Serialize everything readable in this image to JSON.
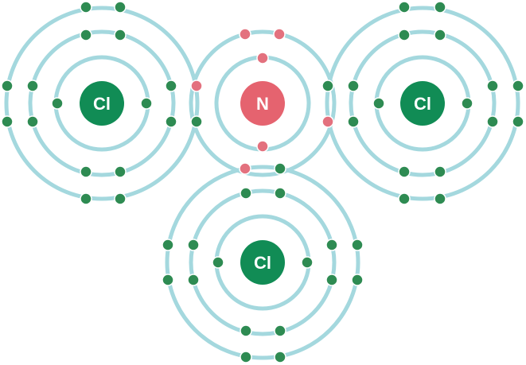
{
  "colors": {
    "background": "#ffffff",
    "shell_ring": "#a4d8de",
    "cl_nucleus": "#118c55",
    "cl_electron": "#2e8b52",
    "n_nucleus": "#e5636f",
    "n_electron": "#e3717e",
    "nucleus_label": "#ffffff"
  },
  "molecule": {
    "atoms": [
      {
        "id": "cl-left",
        "symbol": "Cl",
        "shell_electrons": [
          2,
          8,
          7
        ]
      },
      {
        "id": "n-center",
        "symbol": "N",
        "shell_electrons": [
          2,
          5
        ]
      },
      {
        "id": "cl-right",
        "symbol": "Cl",
        "shell_electrons": [
          2,
          8,
          7
        ]
      },
      {
        "id": "cl-bottom",
        "symbol": "Cl",
        "shell_electrons": [
          2,
          8,
          7
        ]
      }
    ],
    "bonds": [
      {
        "from": "n-center",
        "to": "cl-left",
        "type": "single covalent",
        "shared_pair": [
          "N",
          "Cl"
        ]
      },
      {
        "from": "n-center",
        "to": "cl-right",
        "type": "single covalent",
        "shared_pair": [
          "N",
          "Cl"
        ]
      },
      {
        "from": "n-center",
        "to": "cl-bottom",
        "type": "single covalent",
        "shared_pair": [
          "N",
          "Cl"
        ]
      }
    ]
  }
}
